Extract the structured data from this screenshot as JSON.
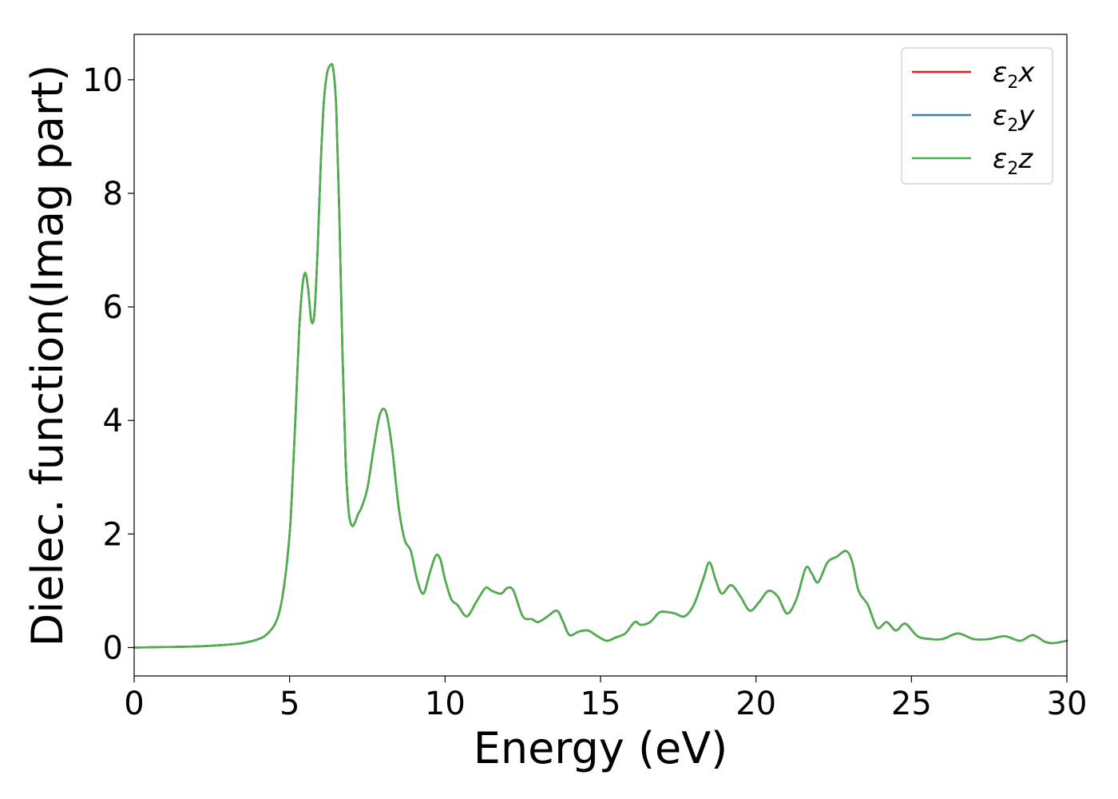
{
  "chart_data": {
    "type": "line",
    "xlabel": "Energy (eV)",
    "ylabel": "Dielec. function(Imag part)",
    "xlim": [
      0,
      30
    ],
    "ylim": [
      -0.5,
      10.8
    ],
    "xticks": [
      0,
      5,
      10,
      15,
      20,
      25,
      30
    ],
    "yticks": [
      0,
      2,
      4,
      6,
      8,
      10
    ],
    "grid": false,
    "legend_position": "top-right",
    "series": [
      {
        "name": "ε2x",
        "name_base": "ε",
        "name_sub": "2",
        "name_axis": "x",
        "color": "#e41a1c",
        "x": [
          0,
          1,
          2,
          3,
          3.5,
          4,
          4.3,
          4.6,
          4.8,
          5.0,
          5.1,
          5.2,
          5.3,
          5.4,
          5.5,
          5.6,
          5.7,
          5.8,
          5.9,
          6.0,
          6.1,
          6.2,
          6.3,
          6.4,
          6.5,
          6.6,
          6.7,
          6.8,
          6.9,
          7.0,
          7.1,
          7.2,
          7.3,
          7.5,
          7.7,
          7.9,
          8.1,
          8.3,
          8.5,
          8.7,
          8.9,
          9.1,
          9.3,
          9.5,
          9.7,
          9.85,
          10.0,
          10.2,
          10.4,
          10.7,
          11.0,
          11.3,
          11.5,
          11.8,
          12.0,
          12.2,
          12.5,
          12.8,
          13.0,
          13.3,
          13.6,
          13.8,
          14.0,
          14.3,
          14.6,
          14.9,
          15.2,
          15.5,
          15.8,
          16.1,
          16.3,
          16.6,
          16.9,
          17.2,
          17.4,
          17.7,
          18.0,
          18.3,
          18.5,
          18.7,
          18.9,
          19.2,
          19.5,
          19.8,
          20.1,
          20.4,
          20.7,
          21.0,
          21.3,
          21.6,
          21.8,
          22.0,
          22.3,
          22.6,
          22.9,
          23.1,
          23.3,
          23.6,
          23.9,
          24.2,
          24.5,
          24.8,
          25.2,
          25.6,
          26.0,
          26.5,
          27.0,
          27.5,
          28.0,
          28.5,
          28.9,
          29.3,
          29.6,
          30.0
        ],
        "y": [
          0.0,
          0.01,
          0.02,
          0.05,
          0.08,
          0.15,
          0.25,
          0.5,
          1.0,
          2.0,
          3.0,
          4.2,
          5.5,
          6.3,
          6.6,
          6.3,
          5.75,
          5.9,
          7.0,
          8.5,
          9.6,
          10.1,
          10.25,
          10.2,
          9.5,
          7.6,
          5.2,
          3.3,
          2.4,
          2.15,
          2.2,
          2.35,
          2.45,
          2.8,
          3.5,
          4.1,
          4.15,
          3.5,
          2.5,
          1.9,
          1.7,
          1.2,
          0.95,
          1.3,
          1.62,
          1.55,
          1.2,
          0.85,
          0.75,
          0.55,
          0.8,
          1.05,
          1.0,
          0.95,
          1.05,
          1.0,
          0.55,
          0.5,
          0.45,
          0.55,
          0.65,
          0.45,
          0.22,
          0.28,
          0.3,
          0.2,
          0.12,
          0.18,
          0.25,
          0.45,
          0.4,
          0.45,
          0.62,
          0.62,
          0.6,
          0.55,
          0.75,
          1.2,
          1.5,
          1.2,
          0.95,
          1.1,
          0.9,
          0.65,
          0.8,
          1.0,
          0.9,
          0.6,
          0.85,
          1.4,
          1.3,
          1.15,
          1.5,
          1.6,
          1.7,
          1.5,
          1.0,
          0.75,
          0.35,
          0.45,
          0.3,
          0.42,
          0.2,
          0.15,
          0.15,
          0.25,
          0.15,
          0.15,
          0.2,
          0.12,
          0.22,
          0.1,
          0.08,
          0.12
        ]
      },
      {
        "name": "ε2y",
        "name_base": "ε",
        "name_sub": "2",
        "name_axis": "y",
        "color": "#377eb8",
        "x": [
          0,
          1,
          2,
          3,
          3.5,
          4,
          4.3,
          4.6,
          4.8,
          5.0,
          5.1,
          5.2,
          5.3,
          5.4,
          5.5,
          5.6,
          5.7,
          5.8,
          5.9,
          6.0,
          6.1,
          6.2,
          6.3,
          6.4,
          6.5,
          6.6,
          6.7,
          6.8,
          6.9,
          7.0,
          7.1,
          7.2,
          7.3,
          7.5,
          7.7,
          7.9,
          8.1,
          8.3,
          8.5,
          8.7,
          8.9,
          9.1,
          9.3,
          9.5,
          9.7,
          9.85,
          10.0,
          10.2,
          10.4,
          10.7,
          11.0,
          11.3,
          11.5,
          11.8,
          12.0,
          12.2,
          12.5,
          12.8,
          13.0,
          13.3,
          13.6,
          13.8,
          14.0,
          14.3,
          14.6,
          14.9,
          15.2,
          15.5,
          15.8,
          16.1,
          16.3,
          16.6,
          16.9,
          17.2,
          17.4,
          17.7,
          18.0,
          18.3,
          18.5,
          18.7,
          18.9,
          19.2,
          19.5,
          19.8,
          20.1,
          20.4,
          20.7,
          21.0,
          21.3,
          21.6,
          21.8,
          22.0,
          22.3,
          22.6,
          22.9,
          23.1,
          23.3,
          23.6,
          23.9,
          24.2,
          24.5,
          24.8,
          25.2,
          25.6,
          26.0,
          26.5,
          27.0,
          27.5,
          28.0,
          28.5,
          28.9,
          29.3,
          29.6,
          30.0
        ],
        "y": [
          0.0,
          0.01,
          0.02,
          0.05,
          0.08,
          0.15,
          0.25,
          0.5,
          1.0,
          2.0,
          3.0,
          4.2,
          5.5,
          6.3,
          6.6,
          6.3,
          5.75,
          5.9,
          7.0,
          8.5,
          9.6,
          10.1,
          10.25,
          10.2,
          9.5,
          7.6,
          5.2,
          3.3,
          2.4,
          2.15,
          2.2,
          2.35,
          2.45,
          2.8,
          3.5,
          4.1,
          4.15,
          3.5,
          2.5,
          1.9,
          1.7,
          1.2,
          0.95,
          1.3,
          1.62,
          1.55,
          1.2,
          0.85,
          0.75,
          0.55,
          0.8,
          1.05,
          1.0,
          0.95,
          1.05,
          1.0,
          0.55,
          0.5,
          0.45,
          0.55,
          0.65,
          0.45,
          0.22,
          0.28,
          0.3,
          0.2,
          0.12,
          0.18,
          0.25,
          0.45,
          0.4,
          0.45,
          0.62,
          0.62,
          0.6,
          0.55,
          0.75,
          1.2,
          1.5,
          1.2,
          0.95,
          1.1,
          0.9,
          0.65,
          0.8,
          1.0,
          0.9,
          0.6,
          0.85,
          1.4,
          1.3,
          1.15,
          1.5,
          1.6,
          1.7,
          1.5,
          1.0,
          0.75,
          0.35,
          0.45,
          0.3,
          0.42,
          0.2,
          0.15,
          0.15,
          0.25,
          0.15,
          0.15,
          0.2,
          0.12,
          0.22,
          0.1,
          0.08,
          0.12
        ]
      },
      {
        "name": "ε2z",
        "name_base": "ε",
        "name_sub": "2",
        "name_axis": "z",
        "color": "#4daf4a",
        "x": [
          0,
          1,
          2,
          3,
          3.5,
          4,
          4.3,
          4.6,
          4.8,
          5.0,
          5.1,
          5.2,
          5.3,
          5.4,
          5.5,
          5.6,
          5.7,
          5.8,
          5.9,
          6.0,
          6.1,
          6.2,
          6.3,
          6.4,
          6.5,
          6.6,
          6.7,
          6.8,
          6.9,
          7.0,
          7.1,
          7.2,
          7.3,
          7.5,
          7.7,
          7.9,
          8.1,
          8.3,
          8.5,
          8.7,
          8.9,
          9.1,
          9.3,
          9.5,
          9.7,
          9.85,
          10.0,
          10.2,
          10.4,
          10.7,
          11.0,
          11.3,
          11.5,
          11.8,
          12.0,
          12.2,
          12.5,
          12.8,
          13.0,
          13.3,
          13.6,
          13.8,
          14.0,
          14.3,
          14.6,
          14.9,
          15.2,
          15.5,
          15.8,
          16.1,
          16.3,
          16.6,
          16.9,
          17.2,
          17.4,
          17.7,
          18.0,
          18.3,
          18.5,
          18.7,
          18.9,
          19.2,
          19.5,
          19.8,
          20.1,
          20.4,
          20.7,
          21.0,
          21.3,
          21.6,
          21.8,
          22.0,
          22.3,
          22.6,
          22.9,
          23.1,
          23.3,
          23.6,
          23.9,
          24.2,
          24.5,
          24.8,
          25.2,
          25.6,
          26.0,
          26.5,
          27.0,
          27.5,
          28.0,
          28.5,
          28.9,
          29.3,
          29.6,
          30.0
        ],
        "y": [
          0.0,
          0.01,
          0.02,
          0.05,
          0.08,
          0.15,
          0.25,
          0.5,
          1.0,
          2.0,
          3.0,
          4.2,
          5.5,
          6.3,
          6.6,
          6.3,
          5.75,
          5.9,
          7.0,
          8.5,
          9.6,
          10.1,
          10.25,
          10.2,
          9.5,
          7.6,
          5.2,
          3.3,
          2.4,
          2.15,
          2.2,
          2.35,
          2.45,
          2.8,
          3.5,
          4.1,
          4.15,
          3.5,
          2.5,
          1.9,
          1.7,
          1.2,
          0.95,
          1.3,
          1.62,
          1.55,
          1.2,
          0.85,
          0.75,
          0.55,
          0.8,
          1.05,
          1.0,
          0.95,
          1.05,
          1.0,
          0.55,
          0.5,
          0.45,
          0.55,
          0.65,
          0.45,
          0.22,
          0.28,
          0.3,
          0.2,
          0.12,
          0.18,
          0.25,
          0.45,
          0.4,
          0.45,
          0.62,
          0.62,
          0.6,
          0.55,
          0.75,
          1.2,
          1.5,
          1.2,
          0.95,
          1.1,
          0.9,
          0.65,
          0.8,
          1.0,
          0.9,
          0.6,
          0.85,
          1.4,
          1.3,
          1.15,
          1.5,
          1.6,
          1.7,
          1.5,
          1.0,
          0.75,
          0.35,
          0.45,
          0.3,
          0.42,
          0.2,
          0.15,
          0.15,
          0.25,
          0.15,
          0.15,
          0.2,
          0.12,
          0.22,
          0.1,
          0.08,
          0.12
        ]
      }
    ]
  }
}
